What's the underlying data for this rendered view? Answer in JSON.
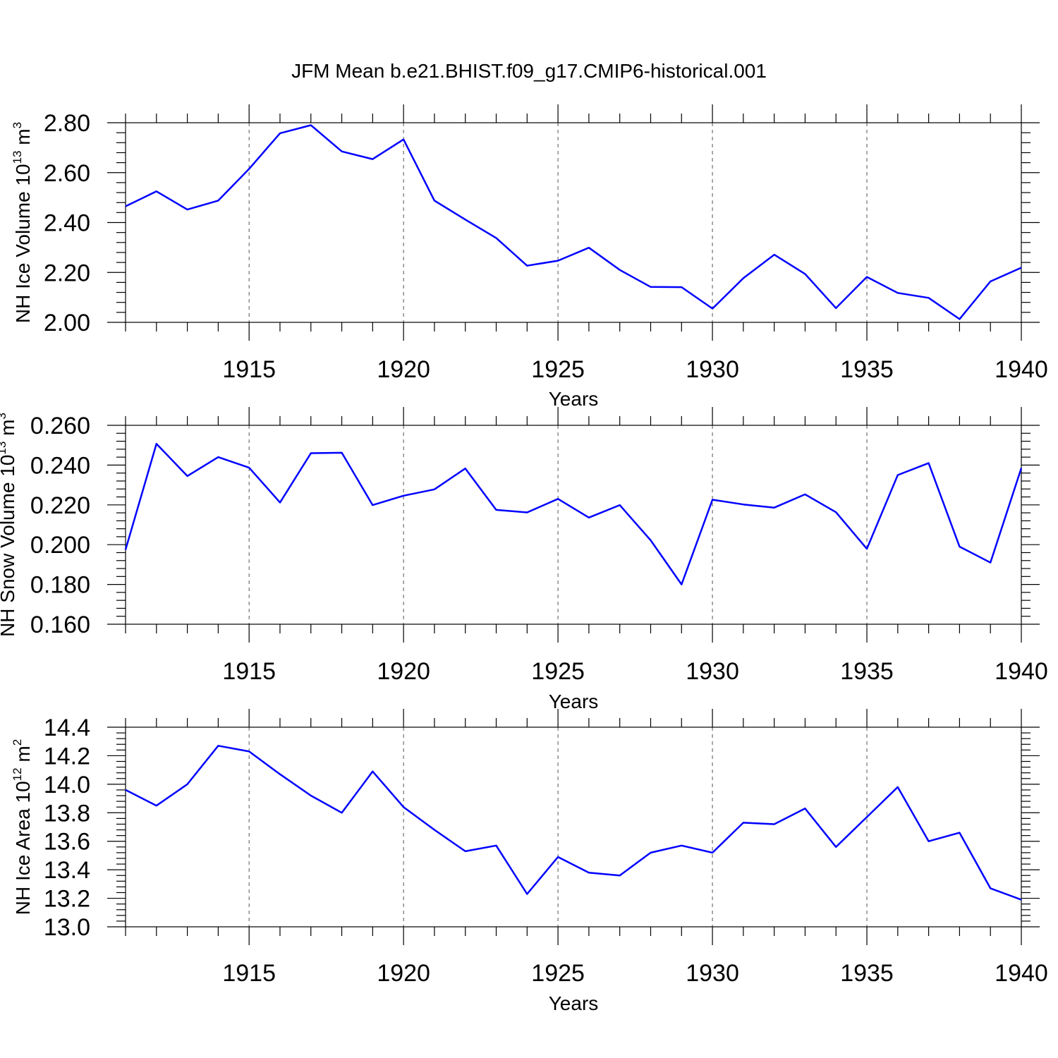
{
  "title": "JFM Mean b.e21.BHIST.f09_g17.CMIP6-historical.001",
  "colors": {
    "series": "#0000ff",
    "axis": "#000000",
    "grid": "#555555"
  },
  "chart_data": [
    {
      "type": "line",
      "xlabel": "Years",
      "ylabel": {
        "text": "NH Ice Volume 10",
        "sup": "13",
        "unit": " m",
        "unit_sup": "3"
      },
      "xlim": [
        1911,
        1940
      ],
      "ylim": [
        2.0,
        2.8
      ],
      "xticks": [
        1915,
        1920,
        1925,
        1930,
        1935,
        1940
      ],
      "xtick_labels": [
        "1915",
        "1920",
        "1925",
        "1930",
        "1935",
        "1940"
      ],
      "yticks": [
        2.0,
        2.2,
        2.4,
        2.6,
        2.8
      ],
      "ytick_labels": [
        "2.00",
        "2.20",
        "2.40",
        "2.60",
        "2.80"
      ],
      "grid": "vertical dashed at major x ticks",
      "x": [
        1911,
        1912,
        1913,
        1914,
        1915,
        1916,
        1917,
        1918,
        1919,
        1920,
        1921,
        1922,
        1923,
        1924,
        1925,
        1926,
        1927,
        1928,
        1929,
        1930,
        1931,
        1932,
        1933,
        1934,
        1935,
        1936,
        1937,
        1938,
        1939,
        1940
      ],
      "values": [
        2.465,
        2.525,
        2.452,
        2.488,
        2.615,
        2.758,
        2.79,
        2.685,
        2.654,
        2.733,
        2.488,
        2.412,
        2.338,
        2.227,
        2.247,
        2.299,
        2.21,
        2.142,
        2.141,
        2.055,
        2.177,
        2.271,
        2.194,
        2.057,
        2.182,
        2.118,
        2.098,
        2.013,
        2.164,
        2.219
      ]
    },
    {
      "type": "line",
      "xlabel": "Years",
      "ylabel": {
        "text": "NH Snow Volume 10",
        "sup": "13",
        "unit": " m",
        "unit_sup": "3"
      },
      "xlim": [
        1911,
        1940
      ],
      "ylim": [
        0.16,
        0.26
      ],
      "xticks": [
        1915,
        1920,
        1925,
        1930,
        1935,
        1940
      ],
      "xtick_labels": [
        "1915",
        "1920",
        "1925",
        "1930",
        "1935",
        "1940"
      ],
      "yticks": [
        0.16,
        0.18,
        0.2,
        0.22,
        0.24,
        0.26
      ],
      "ytick_labels": [
        "0.160",
        "0.180",
        "0.200",
        "0.220",
        "0.240",
        "0.260"
      ],
      "grid": "vertical dashed at major x ticks",
      "x": [
        1911,
        1912,
        1913,
        1914,
        1915,
        1916,
        1917,
        1918,
        1919,
        1920,
        1921,
        1922,
        1923,
        1924,
        1925,
        1926,
        1927,
        1928,
        1929,
        1930,
        1931,
        1932,
        1933,
        1934,
        1935,
        1936,
        1937,
        1938,
        1939,
        1940
      ],
      "values": [
        0.1975,
        0.2507,
        0.2345,
        0.244,
        0.2387,
        0.2212,
        0.246,
        0.2462,
        0.2199,
        0.2246,
        0.2278,
        0.2383,
        0.2175,
        0.2162,
        0.223,
        0.2136,
        0.2199,
        0.2022,
        0.18,
        0.2226,
        0.2202,
        0.2186,
        0.2253,
        0.2163,
        0.1979,
        0.235,
        0.241,
        0.199,
        0.191,
        0.2385
      ]
    },
    {
      "type": "line",
      "xlabel": "Years",
      "ylabel": {
        "text": "NH Ice Area 10",
        "sup": "12",
        "unit": " m",
        "unit_sup": "2"
      },
      "xlim": [
        1911,
        1940
      ],
      "ylim": [
        13.0,
        14.4
      ],
      "xticks": [
        1915,
        1920,
        1925,
        1930,
        1935,
        1940
      ],
      "xtick_labels": [
        "1915",
        "1920",
        "1925",
        "1930",
        "1935",
        "1940"
      ],
      "yticks": [
        13.0,
        13.2,
        13.4,
        13.6,
        13.8,
        14.0,
        14.2,
        14.4
      ],
      "ytick_labels": [
        "13.0",
        "13.2",
        "13.4",
        "13.6",
        "13.8",
        "14.0",
        "14.2",
        "14.4"
      ],
      "grid": "vertical dashed at major x ticks",
      "x": [
        1911,
        1912,
        1913,
        1914,
        1915,
        1916,
        1917,
        1918,
        1919,
        1920,
        1921,
        1922,
        1923,
        1924,
        1925,
        1926,
        1927,
        1928,
        1929,
        1930,
        1931,
        1932,
        1933,
        1934,
        1935,
        1936,
        1937,
        1938,
        1939,
        1940
      ],
      "values": [
        13.96,
        13.85,
        14.0,
        14.27,
        14.23,
        14.07,
        13.92,
        13.8,
        14.09,
        13.84,
        13.68,
        13.53,
        13.57,
        13.23,
        13.49,
        13.38,
        13.36,
        13.52,
        13.57,
        13.52,
        13.73,
        13.72,
        13.83,
        13.56,
        13.77,
        13.98,
        13.6,
        13.66,
        13.27,
        13.19
      ]
    }
  ]
}
